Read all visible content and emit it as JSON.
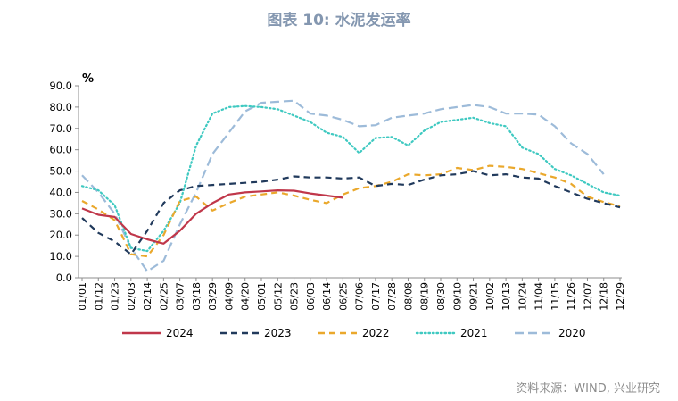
{
  "title": "图表 10: 水泥发运率",
  "source": "资料来源：WIND, 兴业研究",
  "chart_data": {
    "type": "line",
    "title": "图表 10: 水泥发运率",
    "ylabel": "%",
    "xlabel": "",
    "ylim": [
      0,
      90
    ],
    "yticks": [
      "0.0",
      "10.0",
      "20.0",
      "30.0",
      "40.0",
      "50.0",
      "60.0",
      "70.0",
      "80.0",
      "90.0"
    ],
    "x_labels": [
      "01/01",
      "01/12",
      "01/23",
      "02/03",
      "02/14",
      "02/25",
      "03/07",
      "03/18",
      "03/29",
      "04/09",
      "04/20",
      "05/01",
      "05/12",
      "05/23",
      "06/03",
      "06/14",
      "06/25",
      "07/06",
      "07/17",
      "07/28",
      "08/08",
      "08/19",
      "08/30",
      "09/10",
      "09/21",
      "10/02",
      "10/13",
      "10/24",
      "11/04",
      "11/15",
      "11/26",
      "12/07",
      "12/18",
      "12/29"
    ],
    "grid": false,
    "legend": "bottom",
    "series": [
      {
        "name": "2024",
        "color": "#c0374a",
        "style": "solid",
        "values": [
          32.5,
          29.5,
          28.5,
          20.5,
          18.0,
          16.0,
          22.0,
          30.0,
          35.0,
          39.0,
          40.0,
          40.5,
          41.0,
          40.8,
          39.5,
          38.5,
          37.5,
          null,
          null,
          null,
          null,
          null,
          null,
          null,
          null,
          null,
          null,
          null,
          null,
          null,
          null,
          null,
          null,
          null
        ]
      },
      {
        "name": "2023",
        "color": "#213a5c",
        "style": "dashed",
        "values": [
          28.0,
          21.0,
          17.0,
          11.0,
          22.0,
          35.0,
          41.0,
          43.0,
          43.5,
          44.0,
          44.5,
          45.0,
          46.0,
          47.5,
          47.0,
          47.0,
          46.5,
          47.0,
          43.0,
          44.0,
          43.5,
          46.0,
          48.0,
          48.5,
          50.0,
          48.0,
          48.5,
          47.0,
          46.5,
          43.0,
          40.0,
          37.0,
          35.0,
          33.0
        ]
      },
      {
        "name": "2022",
        "color": "#eaa82c",
        "style": "dashed",
        "values": [
          36.0,
          32.0,
          27.0,
          11.0,
          10.0,
          20.0,
          36.0,
          38.0,
          31.5,
          35.0,
          38.0,
          39.0,
          40.0,
          38.5,
          36.5,
          35.0,
          39.0,
          42.0,
          43.0,
          45.0,
          48.5,
          48.0,
          48.5,
          51.5,
          50.5,
          52.5,
          52.0,
          51.0,
          49.0,
          47.0,
          44.0,
          38.0,
          35.5,
          33.5
        ]
      },
      {
        "name": "2021",
        "color": "#3fc9c1",
        "style": "dotted",
        "values": [
          43.0,
          41.0,
          34.0,
          14.0,
          12.5,
          22.0,
          35.0,
          62.0,
          77.0,
          80.0,
          80.5,
          80.0,
          79.0,
          76.0,
          73.0,
          68.0,
          66.0,
          58.5,
          65.5,
          66.0,
          62.0,
          69.0,
          73.0,
          74.0,
          75.0,
          72.5,
          71.0,
          61.0,
          58.0,
          51.0,
          48.0,
          44.0,
          40.0,
          38.5
        ]
      },
      {
        "name": "2020",
        "color": "#9dbbd9",
        "style": "long-dashed",
        "values": [
          48.0,
          40.0,
          30.0,
          14.0,
          3.0,
          8.0,
          25.0,
          40.0,
          58.0,
          68.0,
          78.0,
          82.0,
          82.5,
          83.0,
          77.0,
          76.0,
          74.0,
          71.0,
          71.5,
          75.0,
          76.0,
          77.0,
          79.0,
          80.0,
          81.0,
          80.0,
          77.0,
          77.0,
          76.5,
          71.0,
          63.0,
          58.0,
          48.5,
          null
        ]
      }
    ]
  }
}
